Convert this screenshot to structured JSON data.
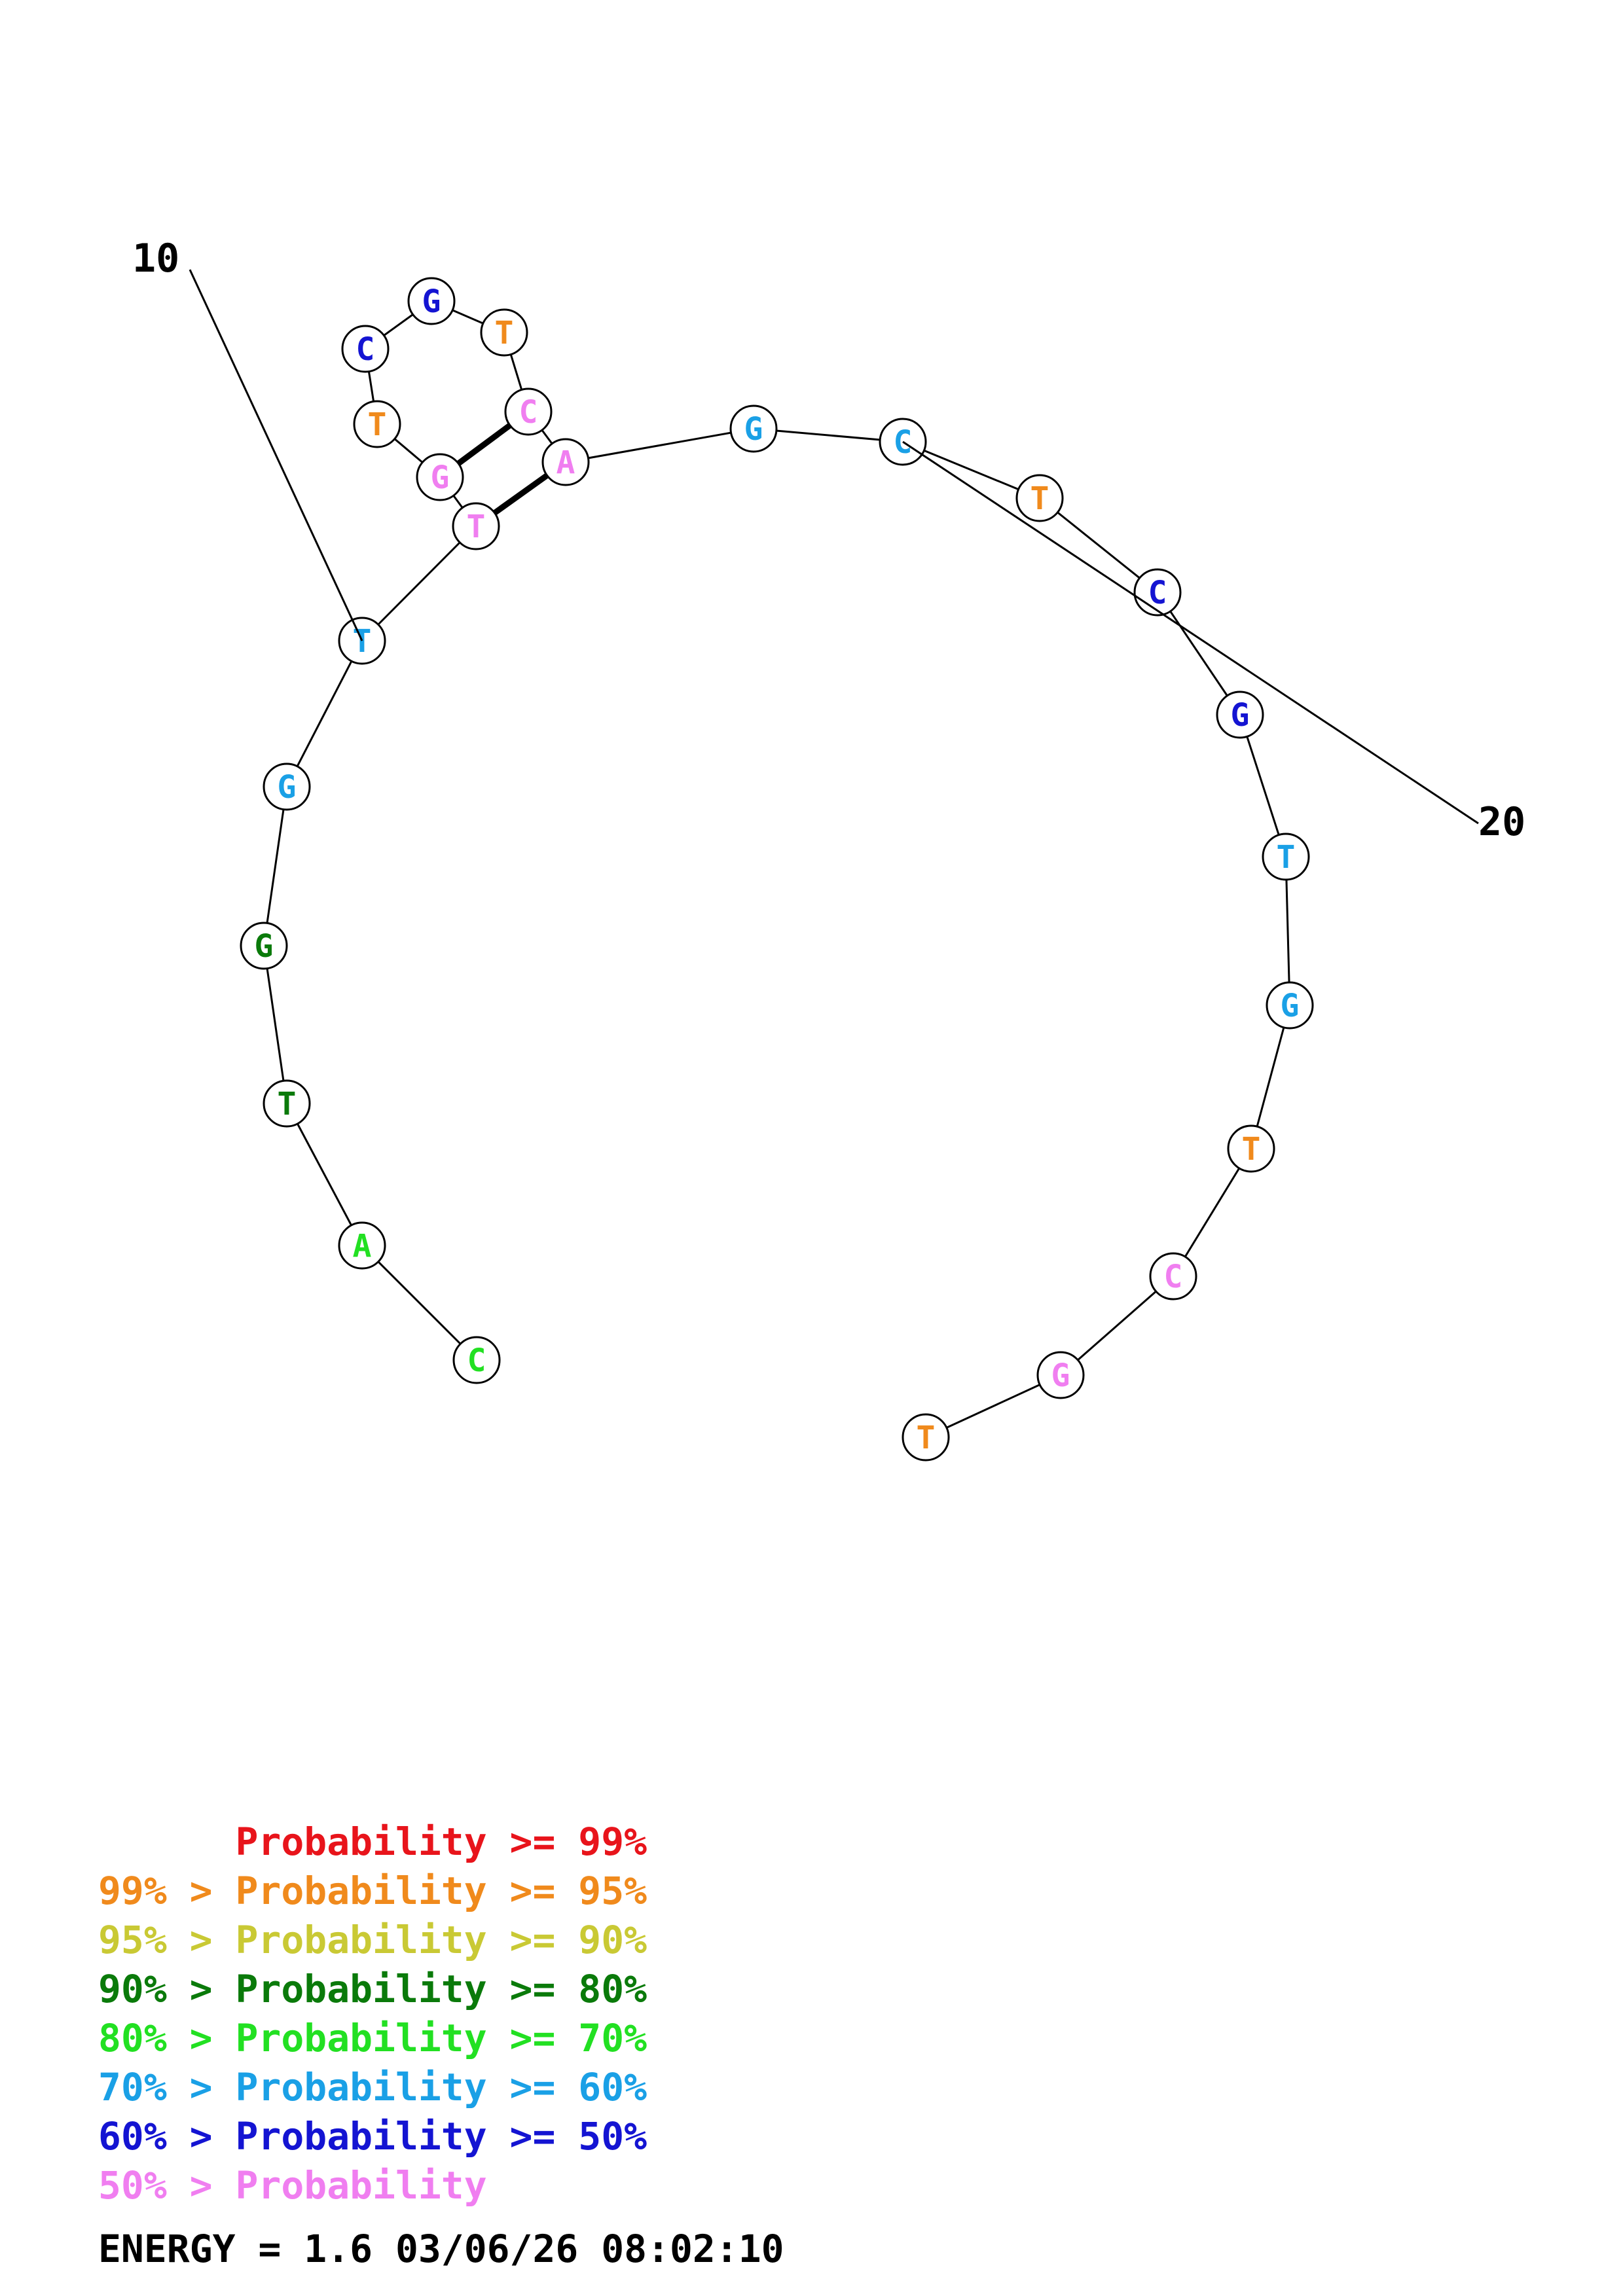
{
  "structure": {
    "energy_label": "ENERGY = 1.6  03/06/26 08:02:10",
    "index_labels": [
      {
        "text": "10",
        "base_index": 5
      },
      {
        "text": "20",
        "base_index": 15
      }
    ],
    "colors": {
      "red": "#e8141b",
      "orange": "#f08a1c",
      "yellow": "#c9c934",
      "dark_green": "#0a7a0a",
      "green": "#22e022",
      "cyan": "#1aa0e6",
      "blue": "#1414d2",
      "pink": "#f07ef0"
    },
    "bases": [
      {
        "letter": "C",
        "color": "green"
      },
      {
        "letter": "A",
        "color": "green"
      },
      {
        "letter": "T",
        "color": "dark_green"
      },
      {
        "letter": "G",
        "color": "dark_green"
      },
      {
        "letter": "G",
        "color": "cyan"
      },
      {
        "letter": "T",
        "color": "cyan"
      },
      {
        "letter": "T",
        "color": "pink"
      },
      {
        "letter": "G",
        "color": "pink"
      },
      {
        "letter": "T",
        "color": "orange"
      },
      {
        "letter": "C",
        "color": "blue"
      },
      {
        "letter": "G",
        "color": "blue"
      },
      {
        "letter": "T",
        "color": "orange"
      },
      {
        "letter": "C",
        "color": "pink"
      },
      {
        "letter": "A",
        "color": "pink"
      },
      {
        "letter": "G",
        "color": "cyan"
      },
      {
        "letter": "C",
        "color": "cyan"
      },
      {
        "letter": "T",
        "color": "orange"
      },
      {
        "letter": "C",
        "color": "blue"
      },
      {
        "letter": "G",
        "color": "blue"
      },
      {
        "letter": "T",
        "color": "cyan"
      },
      {
        "letter": "G",
        "color": "cyan"
      },
      {
        "letter": "T",
        "color": "orange"
      },
      {
        "letter": "C",
        "color": "pink"
      },
      {
        "letter": "G",
        "color": "pink"
      },
      {
        "letter": "T",
        "color": "orange"
      }
    ],
    "pairs": [
      [
        6,
        13
      ],
      [
        7,
        12
      ]
    ]
  },
  "legend": [
    {
      "text": "      Probability >= 99%",
      "color": "red"
    },
    {
      "text": "99% > Probability >= 95%",
      "color": "orange"
    },
    {
      "text": "95% > Probability >= 90%",
      "color": "yellow"
    },
    {
      "text": "90% > Probability >= 80%",
      "color": "dark_green"
    },
    {
      "text": "80% > Probability >= 70%",
      "color": "green"
    },
    {
      "text": "70% > Probability >= 60%",
      "color": "cyan"
    },
    {
      "text": "60% > Probability >= 50%",
      "color": "blue"
    },
    {
      "text": "50% > Probability",
      "color": "pink"
    }
  ]
}
